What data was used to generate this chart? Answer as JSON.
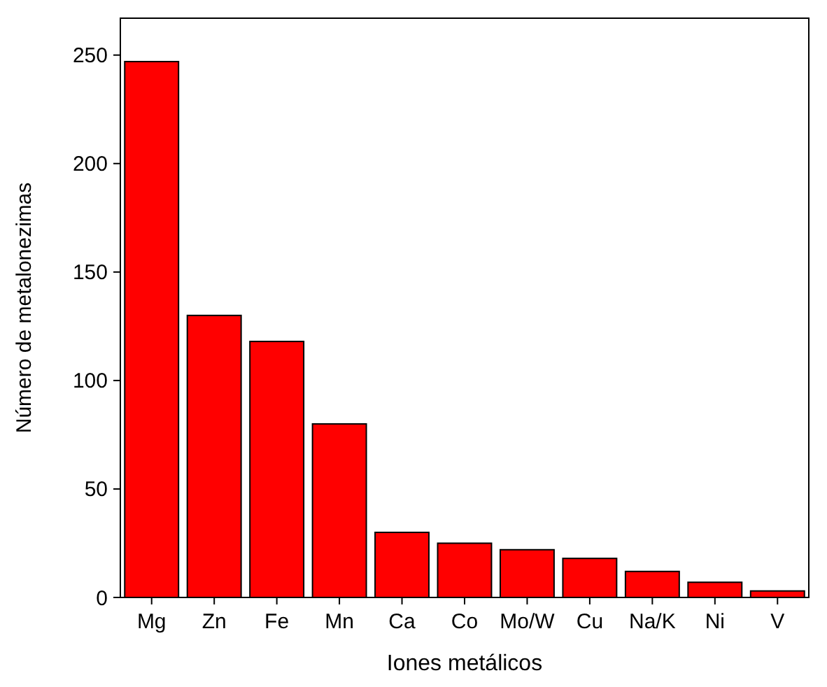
{
  "chart_data": {
    "type": "bar",
    "xlabel": "Iones metálicos",
    "ylabel": "Número de metalonezimas",
    "categories": [
      "Mg",
      "Zn",
      "Fe",
      "Mn",
      "Ca",
      "Co",
      "Mo/W",
      "Cu",
      "Na/K",
      "Ni",
      "V"
    ],
    "values": [
      247,
      130,
      118,
      80,
      30,
      25,
      22,
      18,
      12,
      7,
      3
    ],
    "color": "#ff0000",
    "ylim": [
      0,
      267
    ],
    "yticks": [
      0,
      50,
      100,
      150,
      200,
      250
    ]
  }
}
